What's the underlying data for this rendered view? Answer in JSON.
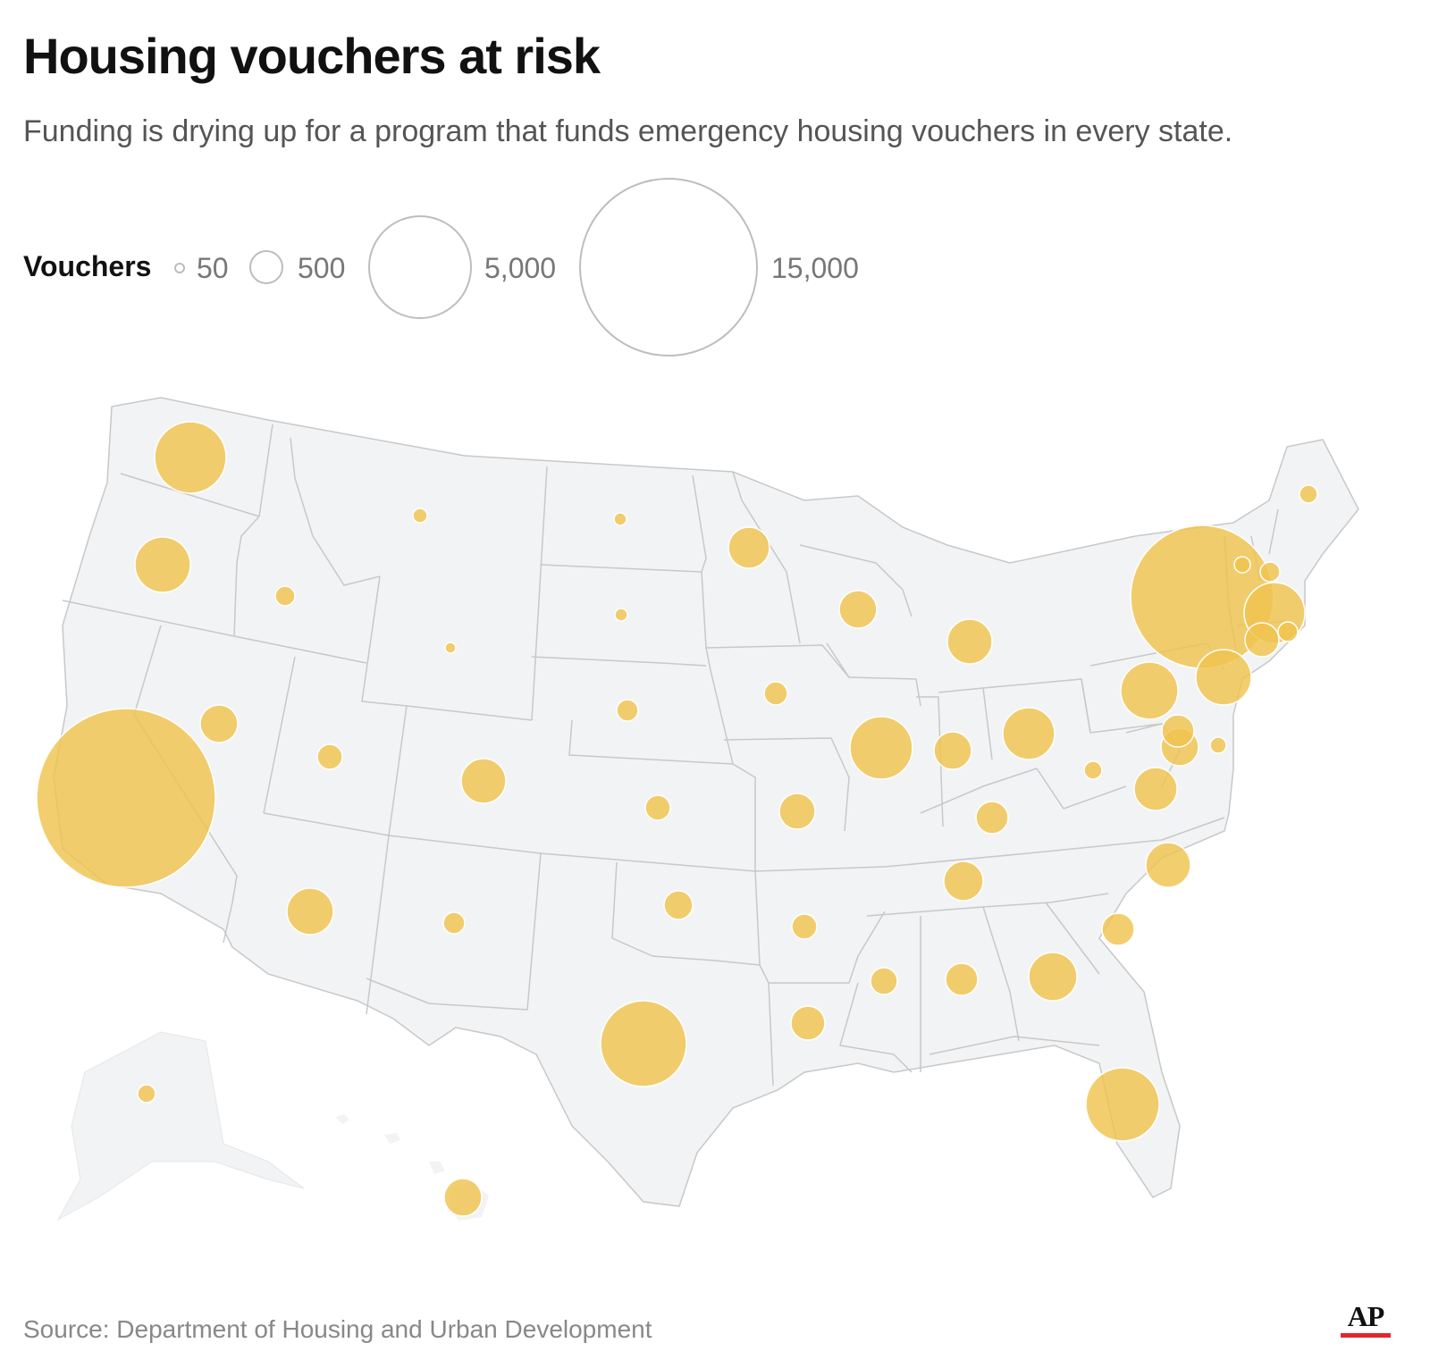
{
  "header": {
    "title": "Housing vouchers at risk",
    "subtitle": "Funding is drying up for a program that funds emergency housing vouchers in every state."
  },
  "legend": {
    "title": "Vouchers",
    "items": [
      {
        "label": "50",
        "value": 50
      },
      {
        "label": "500",
        "value": 500
      },
      {
        "label": "5,000",
        "value": 5000
      },
      {
        "label": "15,000",
        "value": 15000
      }
    ]
  },
  "colors": {
    "bubble": "#f0c34e",
    "land": "#f2f3f4",
    "border": "#c8c8c8",
    "accent": "#e3262f"
  },
  "states": [
    "WA",
    "OR",
    "CA",
    "ID",
    "NV",
    "MT",
    "WY",
    "UT",
    "AZ",
    "CO",
    "NM",
    "ND",
    "SD",
    "NE",
    "KS",
    "OK",
    "TX",
    "MN",
    "IA",
    "MO",
    "AR",
    "LA",
    "WI",
    "IL",
    "MI",
    "IN",
    "OH",
    "KY",
    "TN",
    "MS",
    "AL",
    "GA",
    "FL",
    "SC",
    "NC",
    "VA",
    "WV",
    "MD",
    "DE",
    "PA",
    "NJ",
    "NY",
    "VT",
    "NH",
    "MA",
    "CT",
    "RI",
    "ME",
    "AK",
    "HI"
  ],
  "footer": {
    "source": "Source: Department of Housing and Urban Development",
    "logo": "AP"
  }
}
